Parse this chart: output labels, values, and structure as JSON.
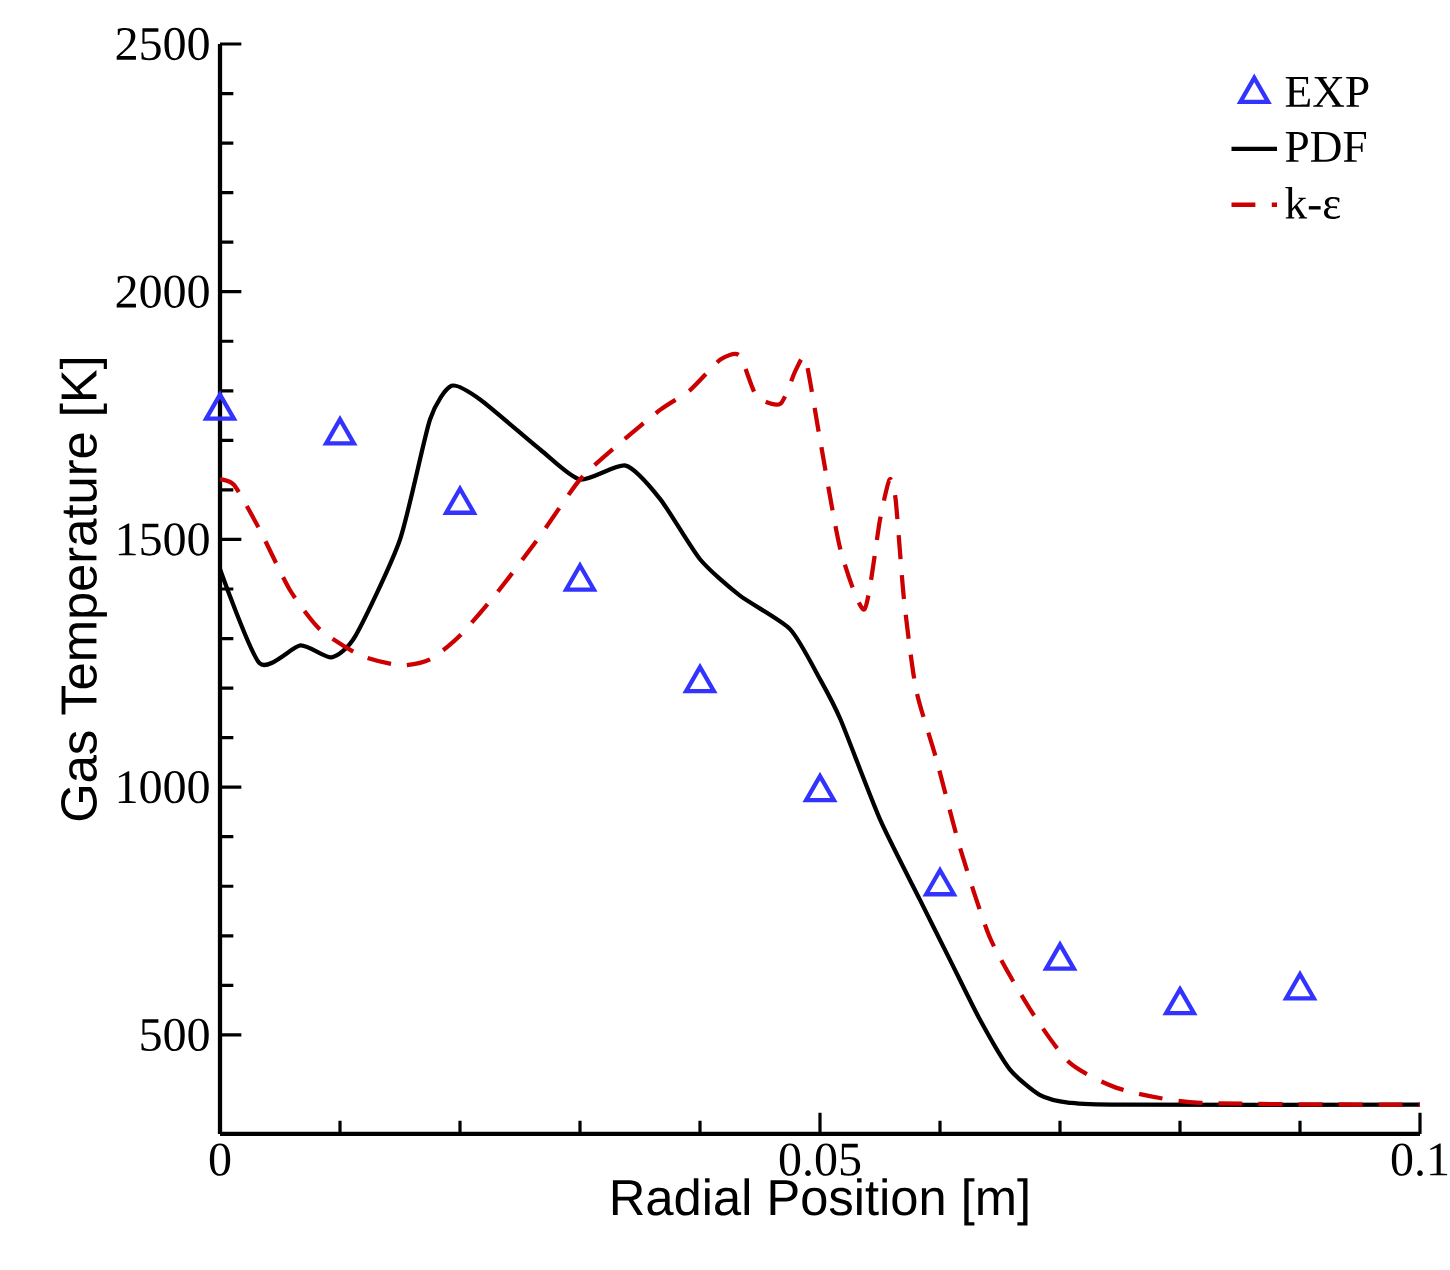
{
  "chart_data": {
    "type": "line",
    "xlabel": "Radial Position [m]",
    "ylabel": "Gas Temperature [K]",
    "xlim": [
      0,
      0.1
    ],
    "ylim": [
      300,
      2500
    ],
    "xticks": [
      0,
      0.05,
      0.1
    ],
    "yticks": [
      500,
      1000,
      1500,
      2000,
      2500
    ],
    "legend": "top right",
    "grid": false,
    "series": [
      {
        "name": "EXP",
        "type": "scatter",
        "marker": "triangle",
        "color": "#3333ff",
        "x": [
          0,
          0.01,
          0.02,
          0.03,
          0.04,
          0.05,
          0.06,
          0.07,
          0.08,
          0.09
        ],
        "values": [
          1760,
          1710,
          1570,
          1415,
          1210,
          990,
          800,
          650,
          560,
          590
        ]
      },
      {
        "name": "PDF",
        "line_style": "solid",
        "color": "#000000",
        "x": [
          0,
          0.0033,
          0.0067,
          0.0093,
          0.0113,
          0.015,
          0.0175,
          0.0193,
          0.0217,
          0.0267,
          0.03,
          0.0338,
          0.0367,
          0.04,
          0.0433,
          0.0475,
          0.05,
          0.0517,
          0.055,
          0.0583,
          0.0608,
          0.0633,
          0.0658,
          0.0683,
          0.0708,
          0.075,
          0.1
        ],
        "values": [
          1440,
          1250,
          1286,
          1262,
          1306,
          1500,
          1742,
          1810,
          1782,
          1681,
          1621,
          1649,
          1581,
          1460,
          1387,
          1319,
          1218,
          1137,
          935,
          774,
          653,
          532,
          431,
          379,
          363,
          359,
          359
        ]
      },
      {
        "name": "k-ε",
        "line_style": "dashed",
        "color": "#cc0000",
        "x": [
          0,
          0.0012,
          0.0033,
          0.0058,
          0.0083,
          0.0117,
          0.015,
          0.0175,
          0.02,
          0.0233,
          0.0267,
          0.03,
          0.0333,
          0.0367,
          0.0392,
          0.0417,
          0.0433,
          0.0447,
          0.0467,
          0.048,
          0.0488,
          0.05,
          0.0517,
          0.0537,
          0.055,
          0.0558,
          0.0563,
          0.057,
          0.058,
          0.0597,
          0.0617,
          0.0642,
          0.0675,
          0.0708,
          0.075,
          0.0817,
          0.1
        ],
        "values": [
          1621,
          1609,
          1520,
          1399,
          1319,
          1266,
          1246,
          1258,
          1306,
          1399,
          1508,
          1621,
          1694,
          1762,
          1802,
          1863,
          1871,
          1790,
          1774,
          1843,
          1863,
          1702,
          1480,
          1359,
          1540,
          1621,
          1581,
          1379,
          1198,
          1056,
          875,
          694,
          552,
          444,
          391,
          363,
          359
        ]
      }
    ]
  }
}
